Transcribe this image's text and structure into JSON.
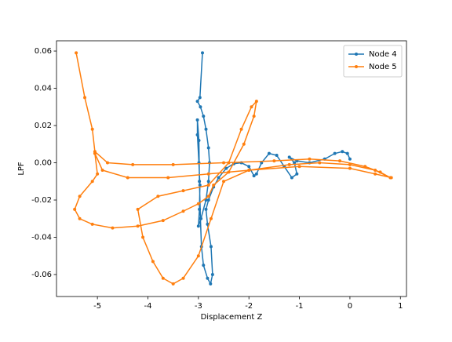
{
  "chart_data": {
    "type": "line",
    "xlabel": "Displacement Z",
    "ylabel": "LPF",
    "xlim": [
      -5.81,
      1.12
    ],
    "xticks": [
      -5,
      -4,
      -3,
      -2,
      -1,
      0,
      1
    ],
    "ylim": [
      -0.0718,
      0.0655
    ],
    "yticks": [
      -0.06,
      -0.04,
      -0.02,
      {
        "value": 0,
        "label": "0.00"
      },
      0.02,
      0.04,
      0.06
    ],
    "legend": "upper right",
    "grid": false,
    "series": [
      {
        "name": "Node 4",
        "color": "#1f77b4",
        "x": [
          -2.92,
          -2.97,
          -3.02,
          -2.96,
          -2.9,
          -2.85,
          -2.8,
          -2.78,
          -2.8,
          -2.85,
          -2.95,
          -3.0,
          -2.98,
          -2.97,
          -2.99,
          -3.02,
          -3.02,
          -2.99,
          -2.98,
          -2.96,
          -2.94,
          -2.9,
          -2.82,
          -2.76,
          -2.72,
          -2.75,
          -2.82,
          -2.85,
          -2.8,
          -2.7,
          -2.6,
          -2.45,
          -2.3,
          -2.15,
          -2.0,
          -1.9,
          -1.85,
          -1.75,
          -1.6,
          -1.45,
          -1.3,
          -1.15,
          -1.05,
          -1.1,
          -1.2,
          -1.05,
          -0.8,
          -0.5,
          -0.3,
          -0.15,
          -0.05,
          0.0
        ],
        "values": [
          0.059,
          0.035,
          0.033,
          0.03,
          0.025,
          0.018,
          0.008,
          0.0,
          -0.01,
          -0.02,
          -0.03,
          -0.034,
          -0.025,
          -0.012,
          0.0,
          0.015,
          0.023,
          0.012,
          -0.01,
          -0.03,
          -0.045,
          -0.055,
          -0.062,
          -0.065,
          -0.06,
          -0.045,
          -0.033,
          -0.025,
          -0.02,
          -0.013,
          -0.008,
          -0.003,
          -0.0005,
          0.0,
          -0.002,
          -0.007,
          -0.006,
          0.0,
          0.005,
          0.004,
          -0.002,
          -0.008,
          -0.006,
          0.0,
          0.003,
          0.001,
          0.0,
          0.002,
          0.005,
          0.006,
          0.005,
          0.002
        ]
      },
      {
        "name": "Node 5",
        "color": "#ff7f0e",
        "x": [
          -5.42,
          -5.25,
          -5.1,
          -5.05,
          -4.8,
          -4.3,
          -3.5,
          -2.5,
          -1.5,
          -0.8,
          -0.2,
          0.3,
          0.6,
          0.8,
          0.5,
          0.0,
          -0.6,
          -1.2,
          -2.0,
          -2.8,
          -3.6,
          -4.4,
          -4.9,
          -5.05,
          -5.0,
          -5.1,
          -5.35,
          -5.45,
          -5.35,
          -5.1,
          -4.7,
          -4.2,
          -3.7,
          -3.3,
          -3.0,
          -2.8,
          -2.7,
          -2.4,
          -2.1,
          -1.9,
          -1.85,
          -1.95,
          -2.15,
          -2.4,
          -2.8,
          -3.3,
          -3.8,
          -4.2,
          -4.1,
          -3.9,
          -3.7,
          -3.5,
          -3.3,
          -3.0,
          -2.75,
          -2.5,
          -2.0,
          -1.0,
          0.0,
          0.5,
          0.82
        ],
        "values": [
          0.059,
          0.035,
          0.018,
          0.006,
          0.0,
          -0.001,
          -0.001,
          0.0,
          0.001,
          0.002,
          0.001,
          -0.002,
          -0.005,
          -0.008,
          -0.004,
          -0.001,
          0.0,
          -0.001,
          -0.004,
          -0.006,
          -0.008,
          -0.008,
          -0.004,
          0.005,
          -0.006,
          -0.01,
          -0.018,
          -0.025,
          -0.03,
          -0.033,
          -0.035,
          -0.034,
          -0.031,
          -0.026,
          -0.022,
          -0.018,
          -0.012,
          -0.005,
          0.01,
          0.025,
          0.033,
          0.03,
          0.018,
          0.0,
          -0.012,
          -0.015,
          -0.018,
          -0.025,
          -0.04,
          -0.053,
          -0.062,
          -0.065,
          -0.062,
          -0.05,
          -0.03,
          -0.01,
          -0.004,
          -0.002,
          -0.003,
          -0.006,
          -0.008
        ]
      }
    ]
  }
}
